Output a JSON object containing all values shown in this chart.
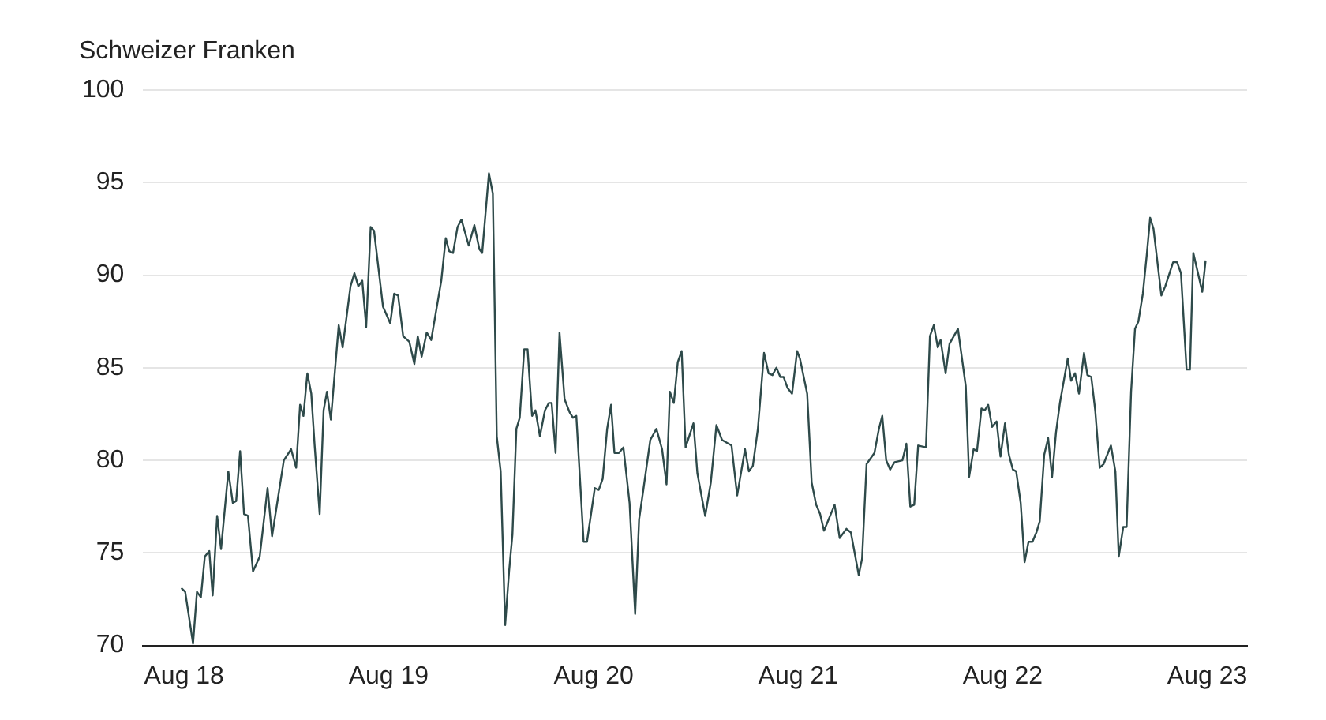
{
  "chart_data": {
    "type": "line",
    "ylabel": "Schweizer Franken",
    "grid": "y",
    "legend": false,
    "marker": "none",
    "line_style": "solid",
    "xlim": [
      "2018-05-20",
      "2023-10-11"
    ],
    "xticks": [
      {
        "value": "2018-08-01",
        "label": "Aug 18"
      },
      {
        "value": "2019-08-01",
        "label": "Aug 19"
      },
      {
        "value": "2020-08-01",
        "label": "Aug 20"
      },
      {
        "value": "2021-08-01",
        "label": "Aug 21"
      },
      {
        "value": "2022-08-01",
        "label": "Aug 22"
      },
      {
        "value": "2023-08-01",
        "label": "Aug 23"
      }
    ],
    "ylim": [
      70,
      100
    ],
    "yticks": [
      70,
      75,
      80,
      85,
      90,
      95,
      100
    ],
    "x": [
      "2018-07-27",
      "2018-08-03",
      "2018-08-17",
      "2018-08-24",
      "2018-08-31",
      "2018-09-07",
      "2018-09-15",
      "2018-09-21",
      "2018-09-29",
      "2018-10-06",
      "2018-10-19",
      "2018-10-27",
      "2018-11-02",
      "2018-11-09",
      "2018-11-16",
      "2018-11-23",
      "2018-12-02",
      "2018-12-14",
      "2018-12-28",
      "2019-01-05",
      "2019-01-26",
      "2019-02-08",
      "2019-02-17",
      "2019-02-24",
      "2019-03-02",
      "2019-03-09",
      "2019-03-16",
      "2019-03-22",
      "2019-03-31",
      "2019-04-07",
      "2019-04-13",
      "2019-04-20",
      "2019-05-04",
      "2019-05-11",
      "2019-05-25",
      "2019-06-01",
      "2019-06-08",
      "2019-06-15",
      "2019-06-22",
      "2019-06-30",
      "2019-07-06",
      "2019-07-22",
      "2019-08-04",
      "2019-08-11",
      "2019-08-18",
      "2019-08-27",
      "2019-09-07",
      "2019-09-16",
      "2019-09-22",
      "2019-09-29",
      "2019-10-08",
      "2019-10-16",
      "2019-11-03",
      "2019-11-11",
      "2019-11-17",
      "2019-11-24",
      "2019-12-02",
      "2019-12-09",
      "2019-12-22",
      "2020-01-01",
      "2020-01-10",
      "2020-01-15",
      "2020-01-27",
      "2020-02-03",
      "2020-02-10",
      "2020-02-17",
      "2020-02-25",
      "2020-03-03",
      "2020-03-09",
      "2020-03-16",
      "2020-03-22",
      "2020-03-30",
      "2020-04-05",
      "2020-04-13",
      "2020-04-19",
      "2020-04-27",
      "2020-05-06",
      "2020-05-13",
      "2020-05-18",
      "2020-05-25",
      "2020-06-01",
      "2020-06-10",
      "2020-06-19",
      "2020-06-25",
      "2020-07-01",
      "2020-07-14",
      "2020-07-20",
      "2020-08-03",
      "2020-08-10",
      "2020-08-17",
      "2020-08-25",
      "2020-09-01",
      "2020-09-07",
      "2020-09-15",
      "2020-09-23",
      "2020-10-04",
      "2020-10-14",
      "2020-10-21",
      "2020-10-29",
      "2020-11-10",
      "2020-11-21",
      "2020-12-01",
      "2020-12-09",
      "2020-12-15",
      "2020-12-22",
      "2020-12-29",
      "2021-01-05",
      "2021-01-12",
      "2021-01-26",
      "2021-02-02",
      "2021-02-16",
      "2021-02-26",
      "2021-03-08",
      "2021-03-18",
      "2021-04-04",
      "2021-04-14",
      "2021-04-28",
      "2021-05-05",
      "2021-05-12",
      "2021-05-21",
      "2021-06-01",
      "2021-06-09",
      "2021-06-16",
      "2021-06-23",
      "2021-06-30",
      "2021-07-06",
      "2021-07-13",
      "2021-07-21",
      "2021-07-30",
      "2021-08-04",
      "2021-08-17",
      "2021-08-25",
      "2021-09-02",
      "2021-09-09",
      "2021-09-16",
      "2021-10-05",
      "2021-10-14",
      "2021-10-26",
      "2021-11-03",
      "2021-11-17",
      "2021-11-23",
      "2021-12-01",
      "2021-12-15",
      "2021-12-23",
      "2021-12-29",
      "2022-01-05",
      "2022-01-12",
      "2022-01-20",
      "2022-02-03",
      "2022-02-10",
      "2022-02-17",
      "2022-02-24",
      "2022-03-03",
      "2022-03-17",
      "2022-03-24",
      "2022-03-31",
      "2022-04-07",
      "2022-04-12",
      "2022-04-21",
      "2022-04-28",
      "2022-05-13",
      "2022-05-27",
      "2022-06-02",
      "2022-06-10",
      "2022-06-16",
      "2022-06-24",
      "2022-06-30",
      "2022-07-06",
      "2022-07-13",
      "2022-07-21",
      "2022-07-28",
      "2022-08-05",
      "2022-08-12",
      "2022-08-19",
      "2022-08-25",
      "2022-09-02",
      "2022-09-09",
      "2022-09-16",
      "2022-09-23",
      "2022-09-30",
      "2022-10-06",
      "2022-10-14",
      "2022-10-21",
      "2022-10-28",
      "2022-11-04",
      "2022-11-11",
      "2022-11-25",
      "2022-12-01",
      "2022-12-08",
      "2022-12-15",
      "2022-12-24",
      "2022-12-30",
      "2023-01-06",
      "2023-01-13",
      "2023-01-21",
      "2023-01-28",
      "2023-02-10",
      "2023-02-18",
      "2023-02-24",
      "2023-03-04",
      "2023-03-10",
      "2023-03-18",
      "2023-03-25",
      "2023-03-31",
      "2023-04-08",
      "2023-04-15",
      "2023-04-21",
      "2023-04-27",
      "2023-05-11",
      "2023-05-18",
      "2023-06-01",
      "2023-06-08",
      "2023-06-15",
      "2023-06-25",
      "2023-07-01",
      "2023-07-07",
      "2023-07-23",
      "2023-07-29"
    ],
    "series": [
      {
        "color": "#2e4a4a",
        "values": [
          73.1,
          72.9,
          70.1,
          72.9,
          72.6,
          74.8,
          75.1,
          72.7,
          77.0,
          75.2,
          79.4,
          77.7,
          77.8,
          80.5,
          77.1,
          77.0,
          74.0,
          74.8,
          78.5,
          75.9,
          80.0,
          80.6,
          79.6,
          83.0,
          82.4,
          84.7,
          83.6,
          80.8,
          77.1,
          82.7,
          83.7,
          82.2,
          87.3,
          86.1,
          89.4,
          90.1,
          89.4,
          89.7,
          87.2,
          92.6,
          92.4,
          88.3,
          87.4,
          89.0,
          88.9,
          86.7,
          86.4,
          85.2,
          86.7,
          85.6,
          86.9,
          86.5,
          89.7,
          92.0,
          91.3,
          91.2,
          92.6,
          93.0,
          91.6,
          92.7,
          91.4,
          91.2,
          95.5,
          94.4,
          81.3,
          79.4,
          71.1,
          74.0,
          76.0,
          81.7,
          82.3,
          86.0,
          86.0,
          82.4,
          82.7,
          81.3,
          82.7,
          83.1,
          83.1,
          80.4,
          86.9,
          83.3,
          82.6,
          82.3,
          82.4,
          75.6,
          75.6,
          78.5,
          78.4,
          79.0,
          81.7,
          83.0,
          80.4,
          80.4,
          80.7,
          77.7,
          71.7,
          76.8,
          78.5,
          81.1,
          81.7,
          80.6,
          78.7,
          83.7,
          83.1,
          85.3,
          85.9,
          80.7,
          82.0,
          79.3,
          77.0,
          78.8,
          81.9,
          81.1,
          80.8,
          78.1,
          80.6,
          79.4,
          79.7,
          81.7,
          85.8,
          84.7,
          84.6,
          85.0,
          84.5,
          84.5,
          83.9,
          83.6,
          85.9,
          85.5,
          83.6,
          78.8,
          77.6,
          77.1,
          76.2,
          77.6,
          75.8,
          76.3,
          76.1,
          73.8,
          74.7,
          79.8,
          80.4,
          81.7,
          82.4,
          80.0,
          79.5,
          79.9,
          80.0,
          80.9,
          77.5,
          77.6,
          80.8,
          80.7,
          86.7,
          87.3,
          86.1,
          86.5,
          84.7,
          86.3,
          87.1,
          84.0,
          79.1,
          80.6,
          80.5,
          82.8,
          82.7,
          83.0,
          81.8,
          82.1,
          80.2,
          82.0,
          80.3,
          79.5,
          79.4,
          77.7,
          74.5,
          75.6,
          75.6,
          76.1,
          76.7,
          80.3,
          81.2,
          79.1,
          81.5,
          83.1,
          85.5,
          84.3,
          84.7,
          83.6,
          85.8,
          84.6,
          84.5,
          82.7,
          79.6,
          79.8,
          80.8,
          79.4,
          74.8,
          76.4,
          76.4,
          83.7,
          87.1,
          87.5,
          89.0,
          91.1,
          93.1,
          92.5,
          88.9,
          89.4,
          90.7,
          90.7,
          90.1,
          84.9,
          84.9,
          91.2,
          89.1,
          90.8
        ]
      }
    ]
  }
}
